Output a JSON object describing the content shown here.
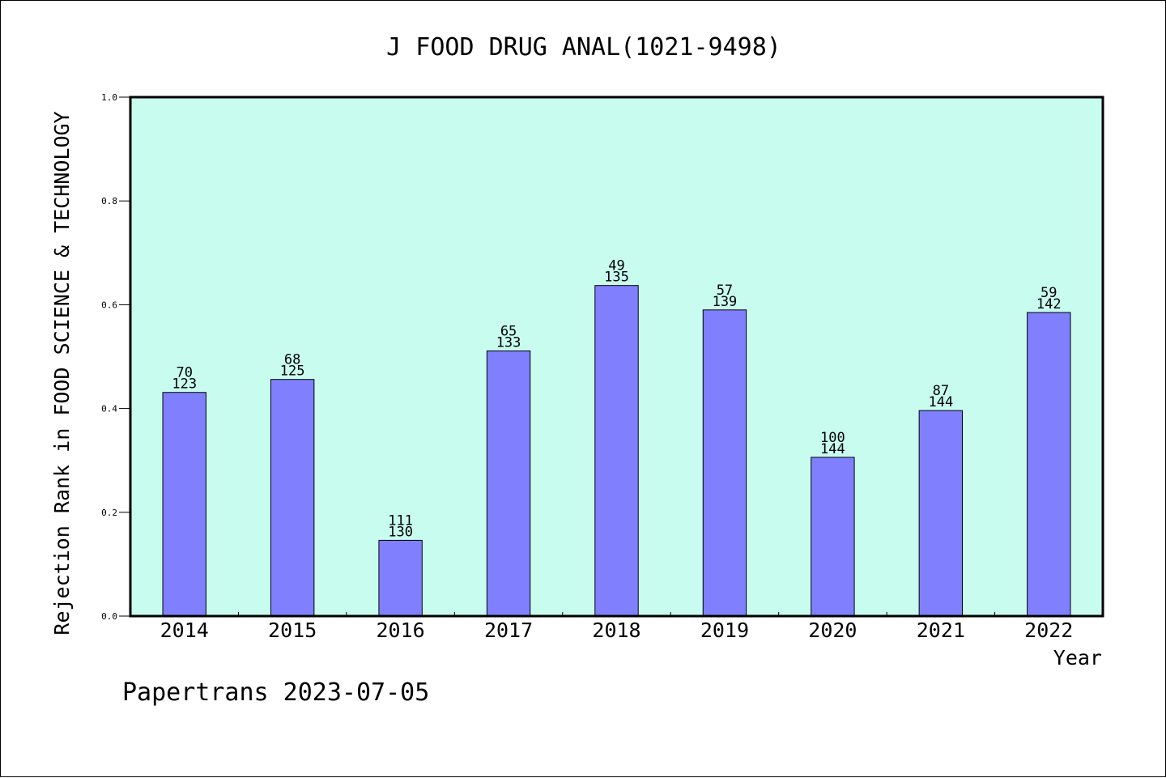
{
  "chart_data": {
    "type": "bar",
    "title": "J FOOD DRUG ANAL(1021-9498)",
    "xlabel": "Year",
    "ylabel": "Rejection Rank in FOOD SCIENCE & TECHNOLOGY",
    "ylim": [
      0,
      1.0
    ],
    "yticks": [
      "0.0",
      "0.2",
      "0.4",
      "0.6",
      "0.8",
      "1.0"
    ],
    "categories": [
      "2014",
      "2015",
      "2016",
      "2017",
      "2018",
      "2019",
      "2020",
      "2021",
      "2022"
    ],
    "values": [
      0.431,
      0.456,
      0.146,
      0.511,
      0.637,
      0.59,
      0.306,
      0.396,
      0.585
    ],
    "labels_top": [
      "70",
      "68",
      "111",
      "65",
      "49",
      "57",
      "100",
      "87",
      "59"
    ],
    "labels_bottom": [
      "123",
      "125",
      "130",
      "133",
      "135",
      "139",
      "144",
      "144",
      "142"
    ],
    "grid": false,
    "legend": "none",
    "colors": {
      "plot_background": "#c8fcee",
      "bar_fill": "#8080ff",
      "bar_stroke": "#000000"
    }
  },
  "footer": {
    "text": "Papertrans 2023-07-05"
  }
}
